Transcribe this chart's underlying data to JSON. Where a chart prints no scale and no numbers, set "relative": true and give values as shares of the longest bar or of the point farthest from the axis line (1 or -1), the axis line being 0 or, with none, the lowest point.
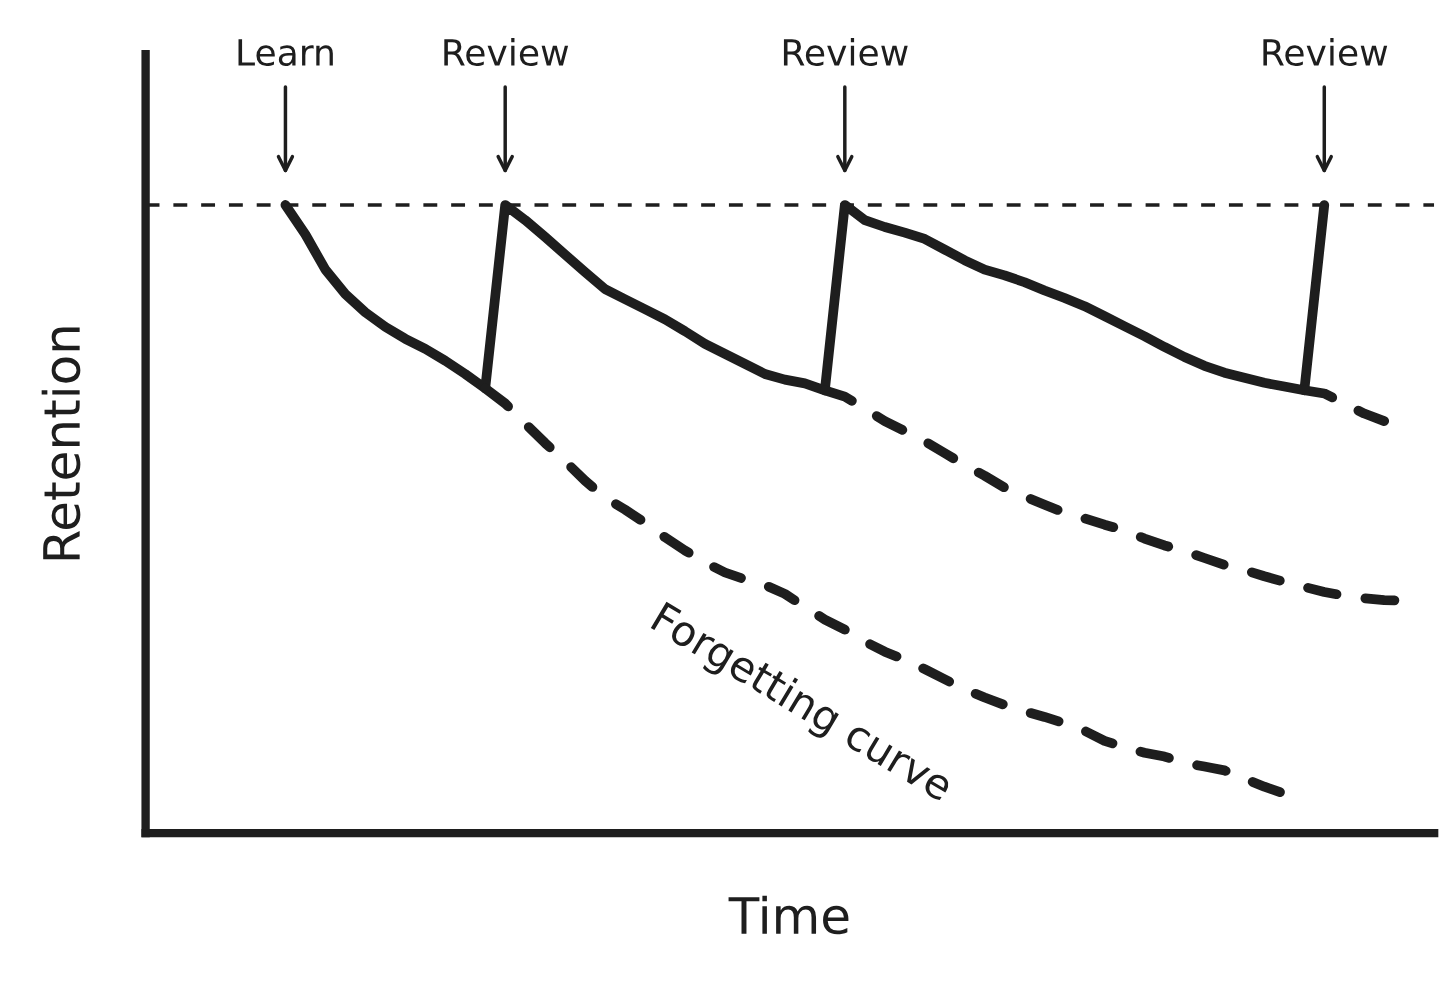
{
  "chart_data": {
    "type": "line",
    "relative": true,
    "xlabel": "Time",
    "ylabel": "Retention",
    "legend": false,
    "categories": [
      null,
      null,
      null,
      null,
      null,
      null,
      null,
      null,
      null,
      null,
      null,
      null,
      null,
      null,
      null,
      null,
      null,
      null,
      null,
      null,
      null,
      null,
      null,
      null,
      null,
      null,
      null,
      null,
      null,
      null,
      null,
      null,
      null,
      null,
      null,
      null,
      null,
      null,
      null,
      null,
      null,
      null,
      null,
      null,
      null,
      null,
      null,
      null,
      null,
      null,
      null,
      null,
      null,
      null,
      null,
      null,
      null,
      null,
      null,
      null,
      null,
      null,
      null,
      null,
      null
    ],
    "series": [
      {
        "color": "#1e1e1e",
        "line_style": "solid",
        "values": [
          null,
          null,
          null,
          null,
          null,
          null,
          null,
          1.0,
          0.953,
          0.897,
          0.858,
          0.829,
          0.806,
          0.787,
          0.771,
          0.752,
          0.731,
          0.708,
          1.0,
          0.976,
          0.949,
          0.921,
          0.893,
          0.866,
          0.85,
          0.834,
          0.818,
          0.799,
          0.779,
          0.763,
          0.747,
          0.731,
          0.722,
          0.716,
          0.705,
          1.0,
          0.976,
          0.965,
          0.956,
          0.946,
          0.929,
          0.912,
          0.897,
          0.888,
          0.877,
          0.864,
          0.852,
          0.839,
          0.823,
          0.807,
          0.791,
          0.774,
          0.758,
          0.744,
          0.733,
          0.725,
          0.717,
          0.711,
          0.705,
          1.0,
          null,
          null,
          null,
          null,
          null
        ]
      },
      {
        "name": "Forgetting curve",
        "color": "#1e1e1e",
        "line_style": "dashed",
        "values": [
          null,
          null,
          null,
          null,
          null,
          null,
          null,
          null,
          null,
          null,
          null,
          null,
          null,
          null,
          null,
          null,
          null,
          0.708,
          0.684,
          0.652,
          0.621,
          0.592,
          0.561,
          0.534,
          0.515,
          0.494,
          0.471,
          0.45,
          0.431,
          0.415,
          0.404,
          0.395,
          0.381,
          0.36,
          0.34,
          0.324,
          0.305,
          0.289,
          0.276,
          0.261,
          0.245,
          0.229,
          0.216,
          0.204,
          0.194,
          0.185,
          0.175,
          0.163,
          0.147,
          0.137,
          0.128,
          0.122,
          0.112,
          0.106,
          0.1,
          0.087,
          0.074,
          0.063,
          null,
          null,
          null,
          null,
          null,
          null,
          null
        ]
      },
      {
        "color": "#1e1e1e",
        "line_style": "dashed",
        "values": [
          null,
          null,
          null,
          null,
          null,
          null,
          null,
          null,
          null,
          null,
          null,
          null,
          null,
          null,
          null,
          null,
          null,
          null,
          null,
          null,
          null,
          null,
          null,
          null,
          null,
          null,
          null,
          null,
          null,
          null,
          null,
          null,
          null,
          null,
          0.705,
          0.695,
          0.676,
          0.656,
          0.64,
          0.624,
          0.605,
          0.586,
          0.569,
          0.55,
          0.536,
          0.523,
          0.51,
          0.501,
          0.491,
          0.482,
          0.469,
          0.458,
          0.449,
          0.438,
          0.427,
          0.419,
          0.409,
          0.4,
          0.392,
          0.384,
          0.378,
          0.374,
          0.371,
          0.37,
          null
        ]
      },
      {
        "color": "#1e1e1e",
        "line_style": "dashed",
        "values": [
          null,
          null,
          null,
          null,
          null,
          null,
          null,
          null,
          null,
          null,
          null,
          null,
          null,
          null,
          null,
          null,
          null,
          null,
          null,
          null,
          null,
          null,
          null,
          null,
          null,
          null,
          null,
          null,
          null,
          null,
          null,
          null,
          null,
          null,
          null,
          null,
          null,
          null,
          null,
          null,
          null,
          null,
          null,
          null,
          null,
          null,
          null,
          null,
          null,
          null,
          null,
          null,
          null,
          null,
          null,
          null,
          null,
          null,
          0.705,
          0.7,
          0.684,
          0.668,
          0.656,
          null,
          null
        ]
      }
    ],
    "ref_lines": [
      {
        "axis": "y",
        "value": 1,
        "label": null,
        "color": "#1e1e1e",
        "line_style": "dashed"
      }
    ],
    "annotations": [
      "Learn",
      "Review",
      "Review",
      "Review"
    ]
  }
}
